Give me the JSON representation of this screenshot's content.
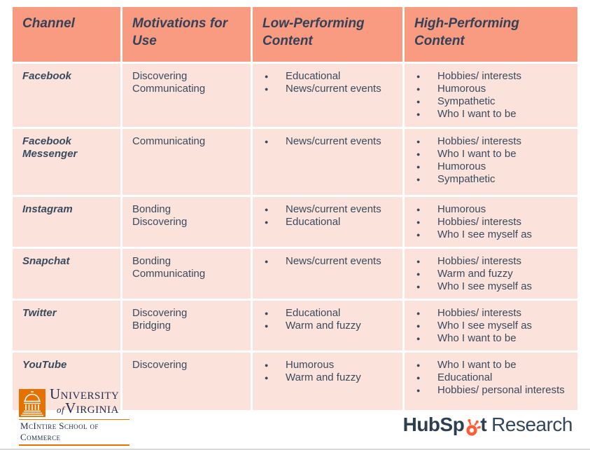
{
  "table": {
    "columns": [
      {
        "label": "Channel"
      },
      {
        "label": "Motivations for Use"
      },
      {
        "label": "Low-Performing Content"
      },
      {
        "label": "High-Performing Content"
      }
    ],
    "rows": [
      {
        "channel": "Facebook",
        "motivations": [
          "Discovering",
          "Communicating"
        ],
        "low": [
          "Educational",
          "News/current events"
        ],
        "high": [
          "Hobbies/ interests",
          "Humorous",
          "Sympathetic",
          "Who I want to be"
        ]
      },
      {
        "channel": "Facebook Messenger",
        "motivations": [
          "Communicating"
        ],
        "low": [
          "News/current events"
        ],
        "high": [
          "Hobbies/ interests",
          "Who I want to be",
          "Humorous",
          "Sympathetic"
        ]
      },
      {
        "channel": "Instagram",
        "motivations": [
          "Bonding",
          "Discovering"
        ],
        "low": [
          "News/current events",
          "Educational"
        ],
        "high": [
          "Humorous",
          "Hobbies/ interests",
          "Who I see myself as"
        ]
      },
      {
        "channel": "Snapchat",
        "motivations": [
          "Bonding",
          "Communicating"
        ],
        "low": [
          "News/current events"
        ],
        "high": [
          "Hobbies/ interests",
          "Warm and fuzzy",
          "Who I see myself as"
        ]
      },
      {
        "channel": "Twitter",
        "motivations": [
          "Discovering",
          "Bridging"
        ],
        "low": [
          "Educational",
          "Warm and fuzzy"
        ],
        "high": [
          "Hobbies/ interests",
          "Who I see myself as",
          "Who I want to be"
        ]
      },
      {
        "channel": "YouTube",
        "motivations": [
          "Discovering"
        ],
        "low": [
          "Humorous",
          "Warm and fuzzy"
        ],
        "high": [
          "Who I want to be",
          "Educational",
          "Hobbies/ personal interests"
        ]
      }
    ]
  },
  "footer": {
    "uva": {
      "line1": "University",
      "of": "of",
      "line2": "Virginia",
      "school": "McIntire School of Commerce"
    },
    "hubspot": {
      "part1": "HubSp",
      "part2": "t",
      "suffix": "Research"
    }
  },
  "colors": {
    "header_bg": "#F89B80",
    "row_bg": "#FBE3DC",
    "text_navy": "#33455C",
    "uva_orange": "#E57200",
    "uva_navy": "#232D4B",
    "hubspot_orange": "#FF5C35",
    "hubspot_navy": "#2D3E50"
  }
}
